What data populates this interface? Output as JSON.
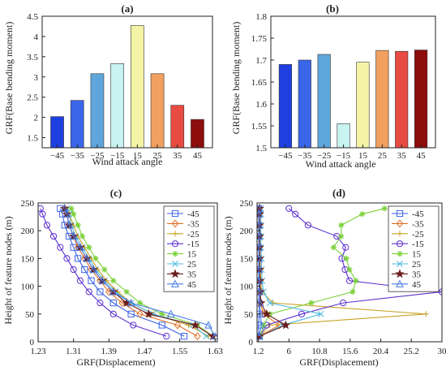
{
  "chart_data": [
    {
      "panel_label": "(a)",
      "type": "bar",
      "categories": [
        "-45",
        "-35",
        "-25",
        "-15",
        "15",
        "25",
        "35",
        "45"
      ],
      "values": [
        2.02,
        2.42,
        3.08,
        3.33,
        4.27,
        3.08,
        2.3,
        1.95
      ],
      "colors": [
        "#1f3fe0",
        "#3a66ea",
        "#5fa6dc",
        "#c9f3f1",
        "#f4f4a6",
        "#f2a05f",
        "#e84b42",
        "#8e0d0d"
      ],
      "xlabel": "Wind attack angle",
      "ylabel": "GRF(Base bending moment)",
      "ylim": [
        1.25,
        4.5
      ],
      "yticks": [
        "1.5",
        "2",
        "2.5",
        "3",
        "3.5",
        "4",
        "4.5"
      ],
      "grid": false
    },
    {
      "panel_label": "(b)",
      "type": "bar",
      "categories": [
        "-45",
        "-35",
        "-25",
        "-15",
        "15",
        "25",
        "35",
        "45"
      ],
      "values": [
        1.69,
        1.7,
        1.713,
        1.555,
        1.695,
        1.722,
        1.72,
        1.723
      ],
      "colors": [
        "#1f3fe0",
        "#3a66ea",
        "#5fa6dc",
        "#c9f3f1",
        "#f4f4a6",
        "#f2a05f",
        "#e84b42",
        "#8e0d0d"
      ],
      "xlabel": "Wind attack angle",
      "ylabel": "GRF(Base bending moment)",
      "ylim": [
        1.5,
        1.8
      ],
      "yticks": [
        "1.5",
        "1.55",
        "1.6",
        "1.65",
        "1.7",
        "1.75",
        "1.8"
      ],
      "grid": false
    },
    {
      "panel_label": "(c)",
      "type": "line",
      "xlabel": "GRF(Displacement)",
      "ylabel": "Height of feature nodes (m)",
      "xlim": [
        1.23,
        1.635
      ],
      "ylim": [
        0,
        250
      ],
      "xticks": [
        "1.23",
        "1.31",
        "1.39",
        "1.47",
        "1.55",
        "1.63"
      ],
      "yticks": [
        "0",
        "50",
        "100",
        "150",
        "200",
        "250"
      ],
      "legend_position": "top-right",
      "y": [
        10,
        30,
        50,
        70,
        90,
        110,
        130,
        150,
        170,
        190,
        210,
        230,
        240
      ],
      "series": [
        {
          "name": "-45",
          "color": "#3b63e6",
          "marker": "square",
          "x": [
            1.56,
            1.51,
            1.44,
            1.4,
            1.37,
            1.35,
            1.335,
            1.32,
            1.31,
            1.3,
            1.29,
            1.285,
            1.28
          ]
        },
        {
          "name": "-35",
          "color": "#e0702a",
          "marker": "diamond",
          "x": [
            1.59,
            1.545,
            1.46,
            1.42,
            1.39,
            1.37,
            1.35,
            1.335,
            1.32,
            1.31,
            1.3,
            1.295,
            1.29
          ]
        },
        {
          "name": "-25",
          "color": "#c9a227",
          "marker": "plus",
          "x": [
            1.615,
            1.57,
            1.49,
            1.44,
            1.41,
            1.385,
            1.365,
            1.35,
            1.335,
            1.32,
            1.31,
            1.3,
            1.295
          ]
        },
        {
          "name": "-15",
          "color": "#5b2fd0",
          "marker": "circle",
          "x": [
            1.52,
            1.445,
            1.4,
            1.37,
            1.345,
            1.325,
            1.31,
            1.295,
            1.28,
            1.265,
            1.25,
            1.24,
            1.235
          ]
        },
        {
          "name": "15",
          "color": "#7bd13b",
          "marker": "asterisk",
          "x": [
            1.625,
            1.59,
            1.51,
            1.46,
            1.43,
            1.4,
            1.38,
            1.36,
            1.345,
            1.33,
            1.32,
            1.31,
            1.305
          ]
        },
        {
          "name": "25",
          "color": "#4fb9e0",
          "marker": "x",
          "x": [
            1.61,
            1.58,
            1.49,
            1.44,
            1.405,
            1.38,
            1.36,
            1.345,
            1.33,
            1.315,
            1.305,
            1.3,
            1.295
          ]
        },
        {
          "name": "35",
          "color": "#6b1d1d",
          "marker": "star",
          "x": [
            1.625,
            1.585,
            1.48,
            1.43,
            1.4,
            1.375,
            1.355,
            1.34,
            1.325,
            1.31,
            1.3,
            1.295,
            1.29
          ]
        },
        {
          "name": "45",
          "color": "#4a7fe8",
          "marker": "triangle",
          "x": [
            1.63,
            1.615,
            1.53,
            1.44,
            1.4,
            1.375,
            1.355,
            1.34,
            1.325,
            1.31,
            1.3,
            1.295,
            1.29
          ]
        }
      ]
    },
    {
      "panel_label": "(d)",
      "type": "line",
      "xlabel": "GRF(Displacement)",
      "ylabel": "Height of feature nodes (m)",
      "xlim": [
        1.0,
        30.0
      ],
      "ylim": [
        0,
        250
      ],
      "xticks": [
        "1.2",
        "6",
        "10.8",
        "15.6",
        "20.4",
        "25.2",
        "30"
      ],
      "yticks": [
        "0",
        "50",
        "100",
        "150",
        "200",
        "250"
      ],
      "legend_position": "top-right",
      "y": [
        10,
        30,
        50,
        70,
        90,
        110,
        130,
        150,
        170,
        190,
        210,
        230,
        240
      ],
      "series": [
        {
          "name": "-45",
          "color": "#3b63e6",
          "marker": "square",
          "x": [
            1.3,
            1.2,
            1.4,
            1.3,
            1.3,
            1.3,
            1.25,
            1.25,
            1.25,
            1.25,
            1.25,
            1.25,
            1.25
          ]
        },
        {
          "name": "-35",
          "color": "#e0702a",
          "marker": "diamond",
          "x": [
            1.4,
            4.5,
            2.0,
            1.5,
            1.4,
            1.35,
            1.3,
            1.3,
            1.3,
            1.3,
            1.3,
            1.3,
            1.3
          ]
        },
        {
          "name": "-25",
          "color": "#c9a227",
          "marker": "plus",
          "x": [
            1.5,
            3.0,
            27.5,
            3.5,
            1.7,
            1.6,
            1.5,
            1.5,
            1.45,
            1.45,
            1.4,
            1.4,
            1.4
          ]
        },
        {
          "name": "-15",
          "color": "#5b2fd0",
          "marker": "circle",
          "x": [
            1.4,
            2.5,
            8.0,
            14.5,
            30.0,
            15.5,
            14.8,
            14.3,
            14.9,
            13.5,
            9.0,
            7.0,
            6.0
          ]
        },
        {
          "name": "15",
          "color": "#7bd13b",
          "marker": "asterisk",
          "x": [
            1.5,
            2.0,
            3.0,
            9.5,
            16.0,
            16.5,
            15.5,
            15.0,
            13.0,
            14.2,
            14.2,
            17.5,
            21.0
          ]
        },
        {
          "name": "25",
          "color": "#4fb9e0",
          "marker": "x",
          "x": [
            1.5,
            5.0,
            11.0,
            3.0,
            2.0,
            1.8,
            1.7,
            1.7,
            1.6,
            1.6,
            1.6,
            1.6,
            1.6
          ]
        },
        {
          "name": "35",
          "color": "#6b1d1d",
          "marker": "star",
          "x": [
            1.4,
            5.5,
            2.5,
            1.6,
            1.5,
            1.45,
            1.4,
            1.4,
            1.4,
            1.4,
            1.4,
            1.4,
            1.4
          ]
        },
        {
          "name": "45",
          "color": "#4a7fe8",
          "marker": "triangle",
          "x": [
            1.3,
            1.7,
            1.5,
            1.4,
            1.35,
            1.3,
            1.3,
            1.3,
            1.3,
            1.3,
            1.3,
            1.3,
            1.3
          ]
        }
      ]
    }
  ]
}
